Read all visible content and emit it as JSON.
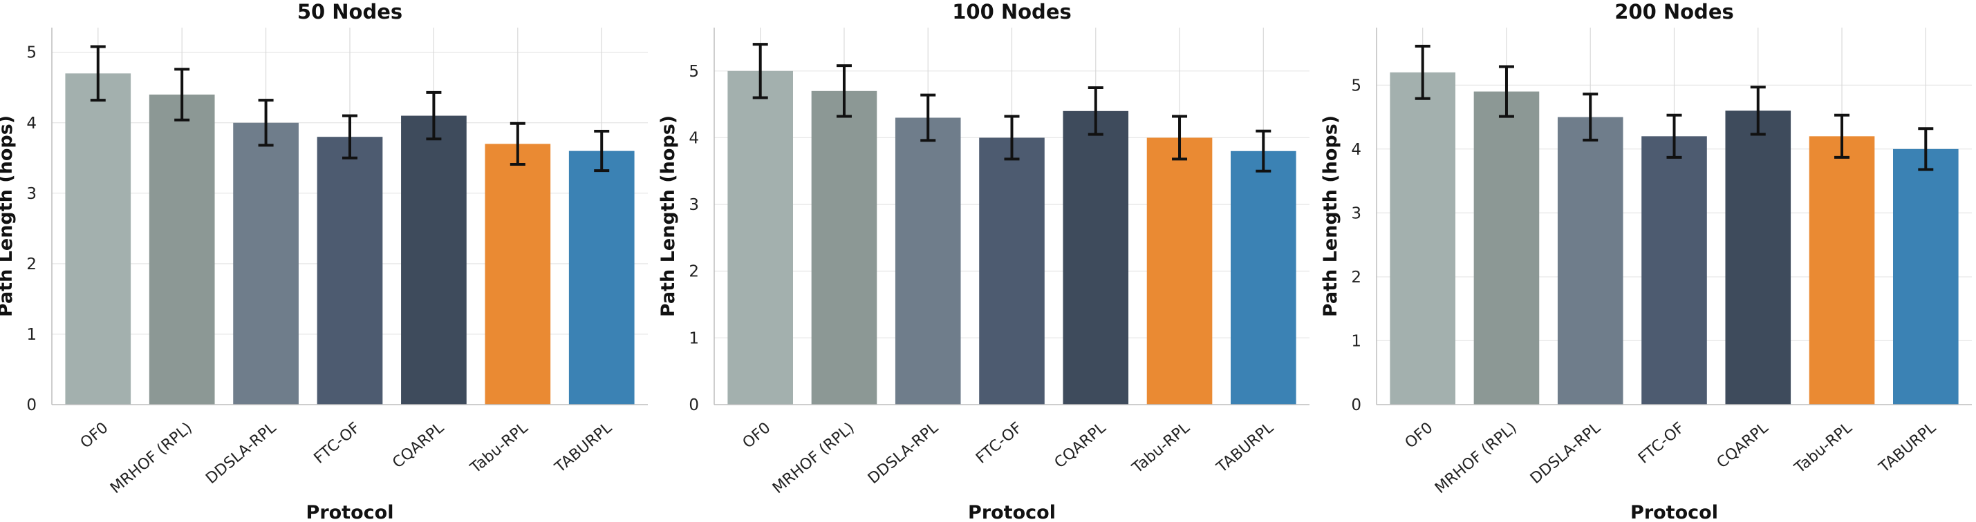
{
  "chart_data": [
    {
      "type": "bar",
      "title": "50 Nodes",
      "xlabel": "Protocol",
      "ylabel": "Path Length (hops)",
      "categories": [
        "OF0",
        "MRHOF (RPL)",
        "DDSLA-RPL",
        "FTC-OF",
        "CQARPL",
        "Tabu-RPL",
        "TABURPL"
      ],
      "values": [
        4.7,
        4.4,
        4.0,
        3.8,
        4.1,
        3.7,
        3.6
      ],
      "errors": [
        0.38,
        0.36,
        0.32,
        0.3,
        0.33,
        0.29,
        0.28
      ],
      "ylim": [
        0,
        5.35
      ],
      "yticks": [
        0,
        1,
        2,
        3,
        4,
        5
      ],
      "grid": true
    },
    {
      "type": "bar",
      "title": "100 Nodes",
      "xlabel": "Protocol",
      "ylabel": "Path Length (hops)",
      "categories": [
        "OF0",
        "MRHOF (RPL)",
        "DDSLA-RPL",
        "FTC-OF",
        "CQARPL",
        "Tabu-RPL",
        "TABURPL"
      ],
      "values": [
        5.0,
        4.7,
        4.3,
        4.0,
        4.4,
        4.0,
        3.8
      ],
      "errors": [
        0.4,
        0.38,
        0.34,
        0.32,
        0.35,
        0.32,
        0.3
      ],
      "ylim": [
        0,
        5.65
      ],
      "yticks": [
        0,
        1,
        2,
        3,
        4,
        5
      ],
      "grid": true
    },
    {
      "type": "bar",
      "title": "200 Nodes",
      "xlabel": "Protocol",
      "ylabel": "Path Length (hops)",
      "categories": [
        "OF0",
        "MRHOF (RPL)",
        "DDSLA-RPL",
        "FTC-OF",
        "CQARPL",
        "Tabu-RPL",
        "TABURPL"
      ],
      "values": [
        5.2,
        4.9,
        4.5,
        4.2,
        4.6,
        4.2,
        4.0
      ],
      "errors": [
        0.41,
        0.39,
        0.36,
        0.33,
        0.37,
        0.33,
        0.32
      ],
      "ylim": [
        0,
        5.9
      ],
      "yticks": [
        0,
        1,
        2,
        3,
        4,
        5
      ],
      "grid": true
    }
  ],
  "colors": [
    "#a3b0ae",
    "#8c9895",
    "#6f7d8b",
    "#4d5b70",
    "#3e4b5c",
    "#ea8a33",
    "#3b82b4"
  ]
}
